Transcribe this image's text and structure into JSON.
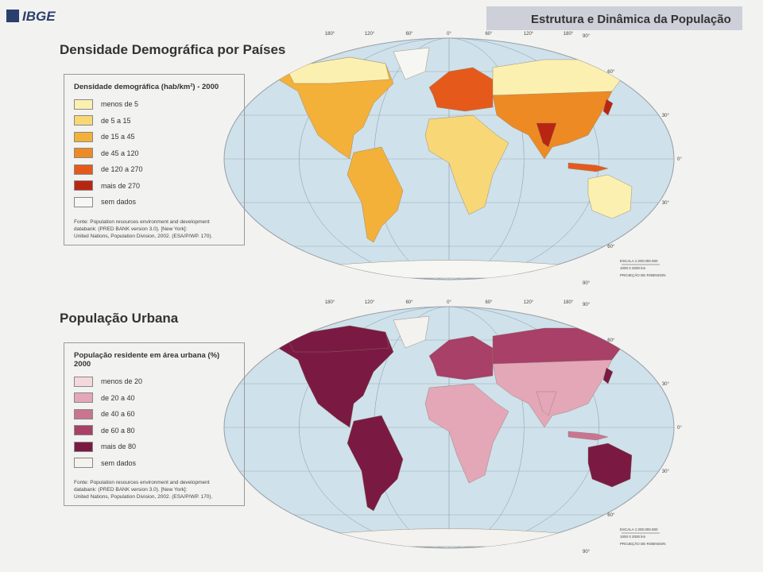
{
  "header": {
    "logo": "IBGE",
    "title": "Estrutura e Dinâmica da População"
  },
  "maps": [
    {
      "title": "Densidade Demográfica por Países",
      "legend": {
        "title": "Densidade demográfica (hab/km²) - 2000",
        "items": [
          {
            "label": "menos de 5",
            "color": "#fbf0b0"
          },
          {
            "label": "de 5 a 15",
            "color": "#f8d777"
          },
          {
            "label": "de 15 a 45",
            "color": "#f3b13a"
          },
          {
            "label": "de 45 a 120",
            "color": "#ee8a24"
          },
          {
            "label": "de 120 a 270",
            "color": "#e55a1b"
          },
          {
            "label": "mais de 270",
            "color": "#b82612"
          },
          {
            "label": "sem dados",
            "color": "#f6f6f2"
          }
        ]
      },
      "source": [
        "Fonte: Population resources environment and development",
        "databank: (PRED BANK version 3.0). [New York]:",
        "United Nations, Population Division, 2002. (ESA/P/WP. 170)."
      ],
      "longitude_labels": [
        "180°",
        "120°",
        "60°",
        "0°",
        "60°",
        "120°",
        "180°"
      ],
      "latitude_labels": [
        "90°",
        "60°",
        "30°",
        "0°",
        "30°",
        "60°",
        "90°"
      ],
      "scale": [
        "ESCALA 1:200.000.000",
        "1000   0   2000 km",
        "PROJEÇÃO DE ROBINSON"
      ]
    },
    {
      "title": "População Urbana",
      "legend": {
        "title": "População residente em área urbana (%) 2000",
        "items": [
          {
            "label": "menos de 20",
            "color": "#f4d8dc"
          },
          {
            "label": "de 20 a 40",
            "color": "#e3a7b8"
          },
          {
            "label": "de 40 a 60",
            "color": "#c97591"
          },
          {
            "label": "de 60 a 80",
            "color": "#a84068"
          },
          {
            "label": "mais de 80",
            "color": "#7a1a42"
          },
          {
            "label": "sem dados",
            "color": "#f4f2ee"
          }
        ]
      },
      "source": [
        "Fonte: Population resources environment and development",
        "databank: (PRED BANK version 3.0). [New York]:",
        "United Nations, Population Division, 2002. (ESA/P/WP. 170)."
      ],
      "longitude_labels": [
        "180°",
        "120°",
        "60°",
        "0°",
        "60°",
        "120°",
        "180°"
      ],
      "latitude_labels": [
        "90°",
        "60°",
        "30°",
        "0°",
        "30°",
        "60°",
        "90°"
      ],
      "scale": [
        "ESCALA 1:200.000.000",
        "1000   0   2000 km",
        "PROJEÇÃO DE ROBINSON"
      ]
    }
  ]
}
